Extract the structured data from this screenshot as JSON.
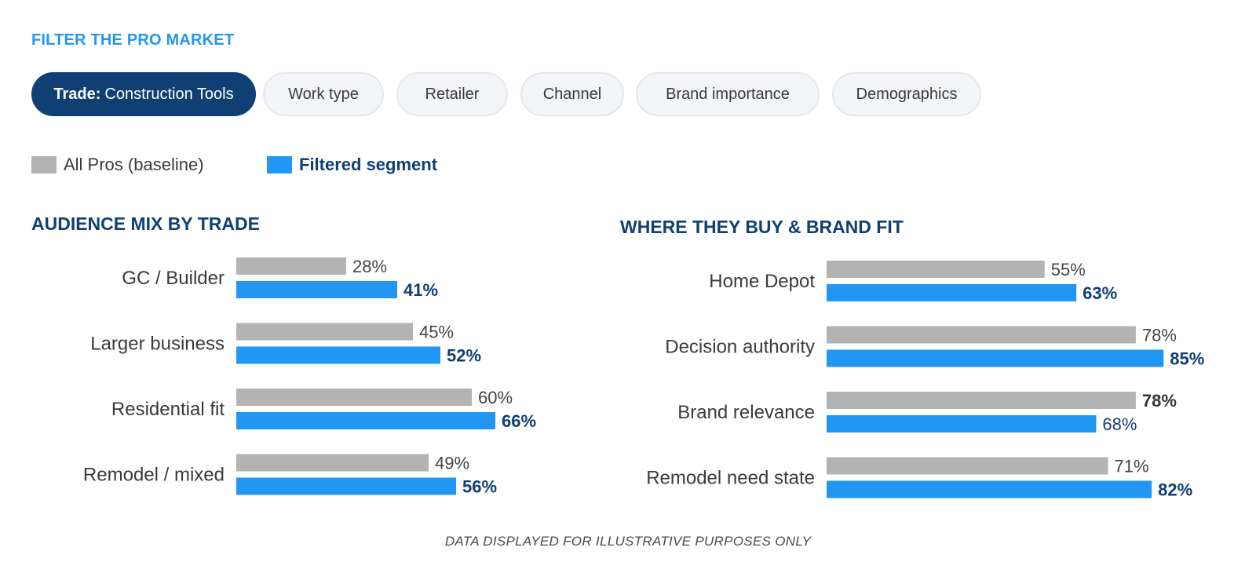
{
  "filter_title": "FILTER THE PRO MARKET",
  "filters": [
    {
      "prefix": "Trade:",
      "label": "Construction Tools",
      "active": true
    },
    {
      "prefix": "",
      "label": "Work type",
      "active": false
    },
    {
      "prefix": "",
      "label": "Retailer",
      "active": false
    },
    {
      "prefix": "",
      "label": "Channel",
      "active": false
    },
    {
      "prefix": "",
      "label": "Brand importance",
      "active": false
    },
    {
      "prefix": "",
      "label": "Demographics",
      "active": false
    }
  ],
  "legend": [
    {
      "label": "All Pros (baseline)",
      "color": "#b3b3b3"
    },
    {
      "label": "Filtered segment",
      "color": "#2196f3"
    }
  ],
  "colors": {
    "baseline": "#b3b3b3",
    "filtered": "#2196f3",
    "navy": "#0f3f73",
    "dark_text": "#333333"
  },
  "chart_data": [
    {
      "type": "bar",
      "orientation": "horizontal",
      "title": "AUDIENCE MIX BY TRADE",
      "categories": [
        "GC / Builder",
        "Larger business",
        "Residential fit",
        "Remodel / mixed"
      ],
      "series": [
        {
          "name": "All Pros (baseline)",
          "values": [
            28,
            45,
            60,
            49
          ]
        },
        {
          "name": "Filtered segment",
          "values": [
            41,
            52,
            66,
            56
          ]
        }
      ],
      "value_labels": [
        [
          "28%",
          "45%",
          "60%",
          "49%"
        ],
        [
          "41%",
          "52%",
          "66%",
          "56%"
        ]
      ],
      "emphasis": [
        [
          "normal",
          "normal",
          "normal",
          "normal"
        ],
        [
          "bold",
          "bold",
          "bold",
          "bold"
        ]
      ],
      "xlim": [
        0,
        100
      ],
      "grid": false,
      "legend": "top-left"
    },
    {
      "type": "bar",
      "orientation": "horizontal",
      "title": "WHERE THEY BUY & BRAND FIT",
      "categories": [
        "Home Depot",
        "Decision authority",
        "Brand relevance",
        "Remodel need state"
      ],
      "series": [
        {
          "name": "All Pros (baseline)",
          "values": [
            55,
            78,
            78,
            71
          ]
        },
        {
          "name": "Filtered segment",
          "values": [
            63,
            85,
            68,
            82
          ]
        }
      ],
      "value_labels": [
        [
          "55%",
          "78%",
          "78%",
          "71%"
        ],
        [
          "63%",
          "85%",
          "68%",
          "82%"
        ]
      ],
      "emphasis": [
        [
          "normal",
          "normal",
          "bold",
          "normal"
        ],
        [
          "bold",
          "bold",
          "normal",
          "bold"
        ]
      ],
      "xlim": [
        0,
        100
      ],
      "grid": false,
      "legend": "top-left"
    }
  ],
  "footnote": "DATA DISPLAYED FOR ILLUSTRATIVE PURPOSES ONLY"
}
